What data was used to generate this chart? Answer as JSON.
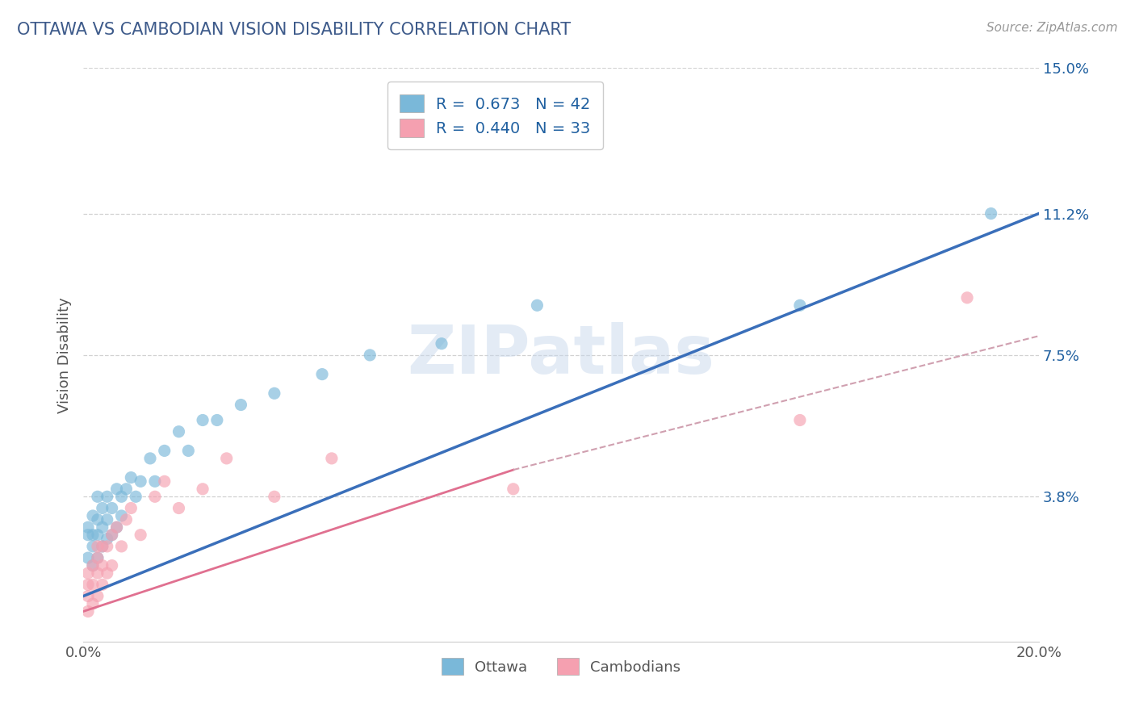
{
  "title": "OTTAWA VS CAMBODIAN VISION DISABILITY CORRELATION CHART",
  "source": "Source: ZipAtlas.com",
  "ylabel": "Vision Disability",
  "xlim": [
    0.0,
    0.2
  ],
  "ylim": [
    0.0,
    0.15
  ],
  "xtick_positions": [
    0.0,
    0.05,
    0.1,
    0.15,
    0.2
  ],
  "xticklabels": [
    "0.0%",
    "",
    "",
    "",
    "20.0%"
  ],
  "ytick_positions": [
    0.038,
    0.075,
    0.112,
    0.15
  ],
  "ytick_labels": [
    "3.8%",
    "7.5%",
    "11.2%",
    "15.0%"
  ],
  "ottawa_color": "#7ab8d9",
  "cambodian_color": "#f5a0b0",
  "ottawa_line_color": "#3a6fba",
  "cambodian_line_color": "#e07090",
  "cambodian_dash_color": "#d0a0b0",
  "R_ottawa": 0.673,
  "N_ottawa": 42,
  "R_cambodian": 0.44,
  "N_cambodian": 33,
  "title_color": "#3d5a8a",
  "axis_label_color": "#555555",
  "legend_text_color": "#2060a0",
  "watermark": "ZIPatlas",
  "watermark_color": "#c8d8ec",
  "grid_color": "#cccccc",
  "background_color": "#ffffff",
  "ottawa_line": {
    "x0": 0.0,
    "y0": 0.012,
    "x1": 0.2,
    "y1": 0.112
  },
  "cambodian_solid_line": {
    "x0": 0.0,
    "y0": 0.008,
    "x1": 0.09,
    "y1": 0.045
  },
  "cambodian_dash_line": {
    "x0": 0.09,
    "y0": 0.045,
    "x1": 0.2,
    "y1": 0.08
  },
  "ottawa_scatter": {
    "x": [
      0.001,
      0.001,
      0.001,
      0.002,
      0.002,
      0.002,
      0.002,
      0.003,
      0.003,
      0.003,
      0.003,
      0.004,
      0.004,
      0.004,
      0.005,
      0.005,
      0.005,
      0.006,
      0.006,
      0.007,
      0.007,
      0.008,
      0.008,
      0.009,
      0.01,
      0.011,
      0.012,
      0.014,
      0.015,
      0.017,
      0.02,
      0.022,
      0.025,
      0.028,
      0.033,
      0.04,
      0.05,
      0.06,
      0.075,
      0.095,
      0.15,
      0.19
    ],
    "y": [
      0.022,
      0.028,
      0.03,
      0.02,
      0.025,
      0.028,
      0.033,
      0.022,
      0.028,
      0.032,
      0.038,
      0.025,
      0.03,
      0.035,
      0.027,
      0.032,
      0.038,
      0.028,
      0.035,
      0.03,
      0.04,
      0.033,
      0.038,
      0.04,
      0.043,
      0.038,
      0.042,
      0.048,
      0.042,
      0.05,
      0.055,
      0.05,
      0.058,
      0.058,
      0.062,
      0.065,
      0.07,
      0.075,
      0.078,
      0.088,
      0.088,
      0.112
    ]
  },
  "cambodian_scatter": {
    "x": [
      0.001,
      0.001,
      0.001,
      0.001,
      0.002,
      0.002,
      0.002,
      0.003,
      0.003,
      0.003,
      0.003,
      0.004,
      0.004,
      0.004,
      0.005,
      0.005,
      0.006,
      0.006,
      0.007,
      0.008,
      0.009,
      0.01,
      0.012,
      0.015,
      0.017,
      0.02,
      0.025,
      0.03,
      0.04,
      0.052,
      0.09,
      0.15,
      0.185
    ],
    "y": [
      0.008,
      0.012,
      0.015,
      0.018,
      0.01,
      0.015,
      0.02,
      0.012,
      0.018,
      0.022,
      0.025,
      0.015,
      0.02,
      0.025,
      0.018,
      0.025,
      0.02,
      0.028,
      0.03,
      0.025,
      0.032,
      0.035,
      0.028,
      0.038,
      0.042,
      0.035,
      0.04,
      0.048,
      0.038,
      0.048,
      0.04,
      0.058,
      0.09
    ]
  }
}
